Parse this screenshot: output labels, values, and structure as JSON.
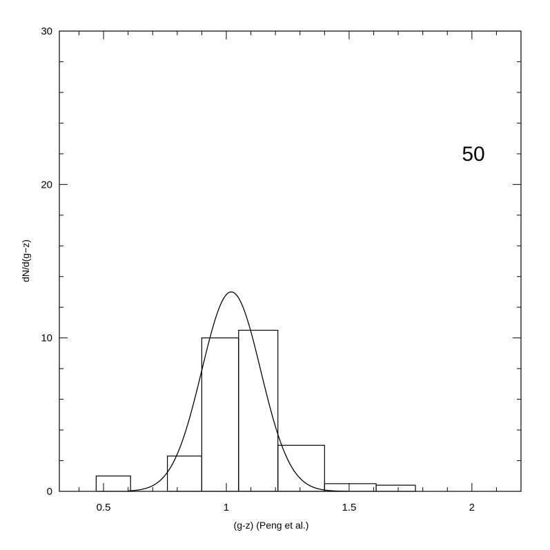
{
  "chart_data": {
    "type": "histogram",
    "xlabel": "(g-z) (Peng et al.)",
    "ylabel": "dN/d(g−z)",
    "xlim": [
      0.32,
      2.2
    ],
    "ylim": [
      0,
      30
    ],
    "x_ticks": [
      0.5,
      1,
      1.5,
      2
    ],
    "x_tick_labels": [
      "0.5",
      "1",
      "1.5",
      "2"
    ],
    "y_ticks": [
      0,
      10,
      20,
      30
    ],
    "y_tick_labels": [
      "0",
      "10",
      "20",
      "30"
    ],
    "annotation": "50",
    "histogram": {
      "bin_edges": [
        0.47,
        0.61,
        0.76,
        0.9,
        1.05,
        1.21,
        1.4,
        1.61,
        1.77
      ],
      "counts": [
        1.0,
        0.0,
        2.3,
        10.0,
        10.5,
        3.0,
        0.5,
        0.4
      ]
    },
    "gaussian_fit": {
      "mean": 1.02,
      "sigma": 0.12,
      "peak": 13.0
    },
    "grid": false,
    "legend": "none"
  }
}
